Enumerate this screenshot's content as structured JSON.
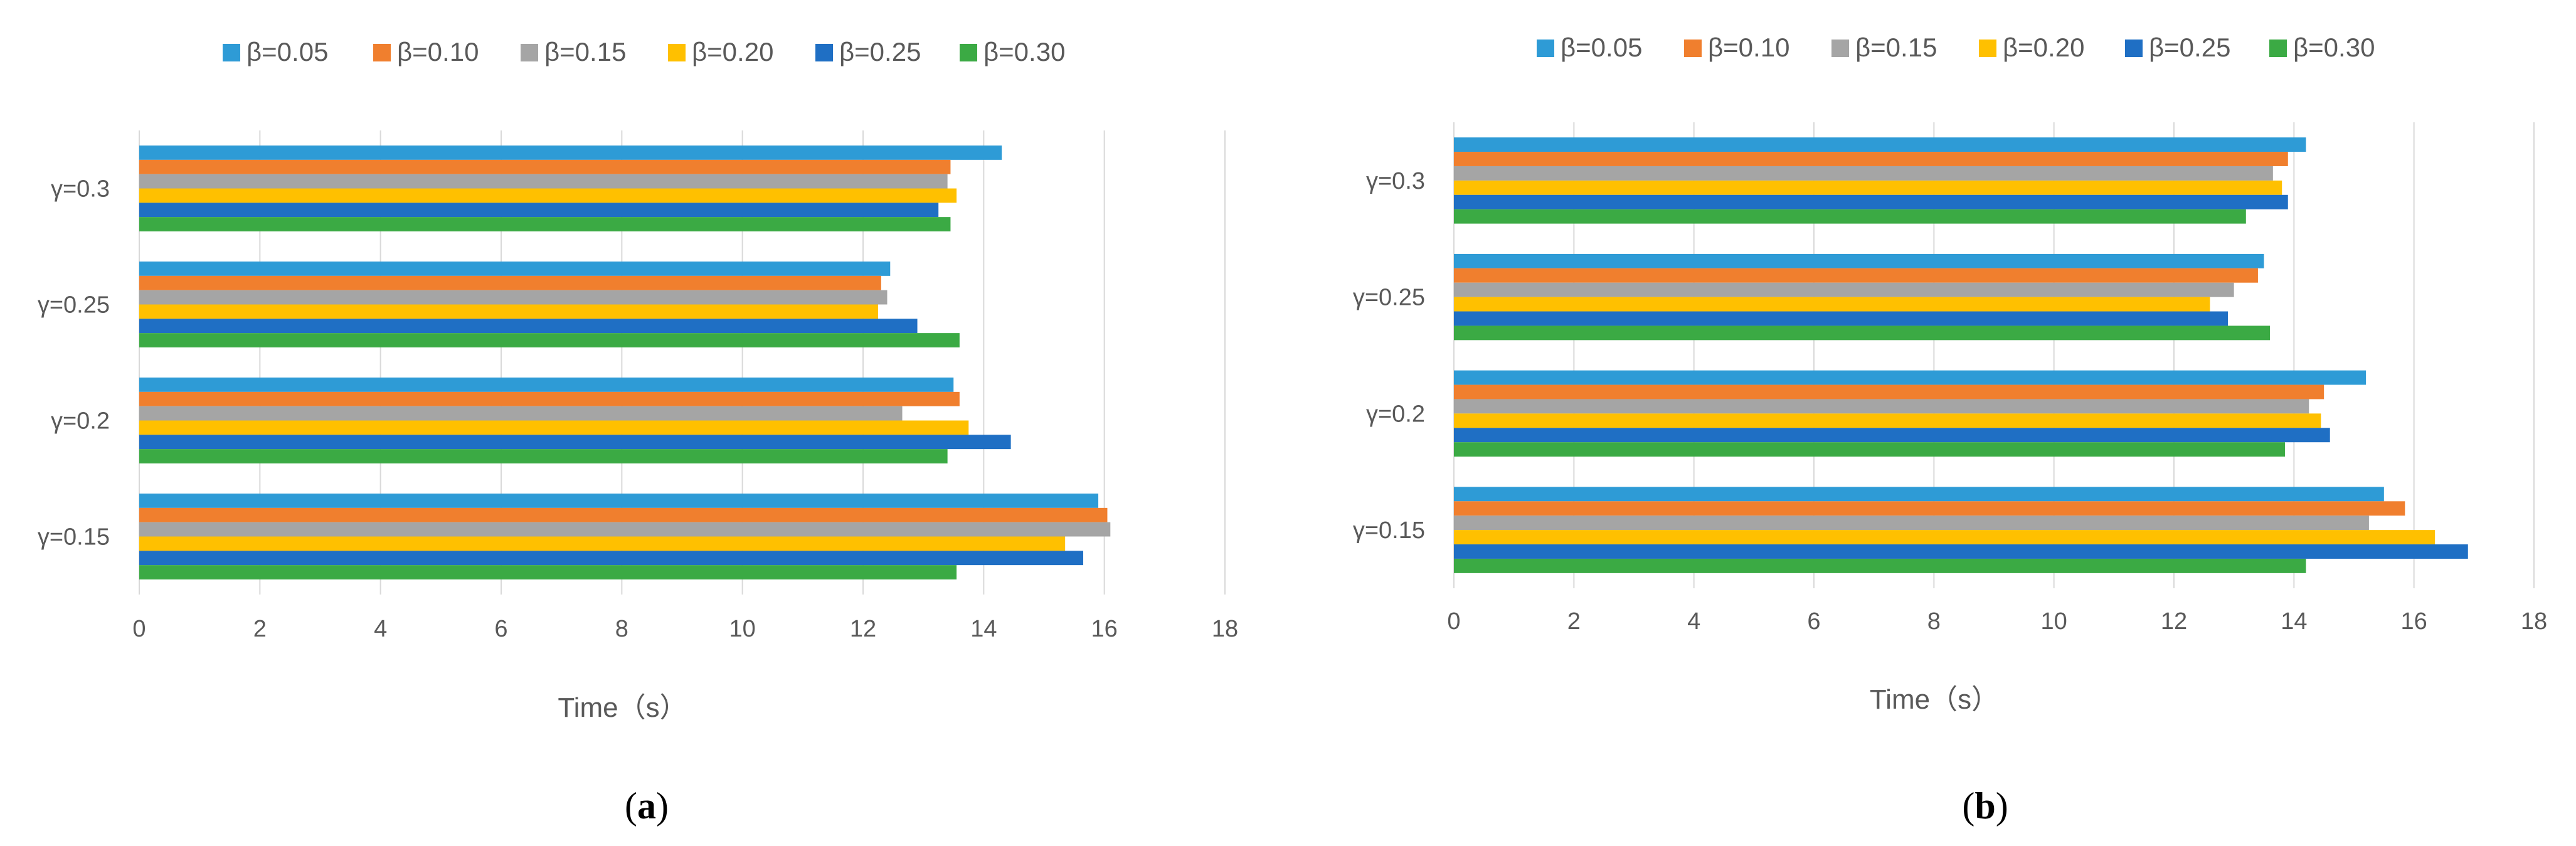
{
  "chart_data": [
    {
      "type": "bar",
      "orientation": "horizontal",
      "panel_label": "a",
      "title": "",
      "xlabel": "Time（s）",
      "ylabel": "",
      "xlim": [
        0,
        18
      ],
      "xticks": [
        0,
        2,
        4,
        6,
        8,
        10,
        12,
        14,
        16,
        18
      ],
      "grid": true,
      "legend_position": "top",
      "categories": [
        "γ=0.15",
        "γ=0.2",
        "γ=0.25",
        "γ=0.3"
      ],
      "series": [
        {
          "name": "β=0.05",
          "color": "#2E9BD6",
          "values": [
            15.9,
            13.5,
            12.45,
            14.3
          ]
        },
        {
          "name": "β=0.10",
          "color": "#F07F2E",
          "values": [
            16.05,
            13.6,
            12.3,
            13.45
          ]
        },
        {
          "name": "β=0.15",
          "color": "#A5A5A5",
          "values": [
            16.1,
            12.65,
            12.4,
            13.4
          ]
        },
        {
          "name": "β=0.20",
          "color": "#FFC000",
          "values": [
            15.35,
            13.75,
            12.25,
            13.55
          ]
        },
        {
          "name": "β=0.25",
          "color": "#1F6FC4",
          "values": [
            15.65,
            14.45,
            12.9,
            13.25
          ]
        },
        {
          "name": "β=0.30",
          "color": "#3BAA44",
          "values": [
            13.55,
            13.4,
            13.6,
            13.45
          ]
        }
      ]
    },
    {
      "type": "bar",
      "orientation": "horizontal",
      "panel_label": "b",
      "title": "",
      "xlabel": "Time（s）",
      "ylabel": "",
      "xlim": [
        0,
        18
      ],
      "xticks": [
        0,
        2,
        4,
        6,
        8,
        10,
        12,
        14,
        16,
        18
      ],
      "grid": true,
      "legend_position": "top",
      "categories": [
        "γ=0.15",
        "γ=0.2",
        "γ=0.25",
        "γ=0.3"
      ],
      "series": [
        {
          "name": "β=0.05",
          "color": "#2E9BD6",
          "values": [
            15.5,
            15.2,
            13.5,
            14.2
          ]
        },
        {
          "name": "β=0.10",
          "color": "#F07F2E",
          "values": [
            15.85,
            14.5,
            13.4,
            13.9
          ]
        },
        {
          "name": "β=0.15",
          "color": "#A5A5A5",
          "values": [
            15.25,
            14.25,
            13.0,
            13.65
          ]
        },
        {
          "name": "β=0.20",
          "color": "#FFC000",
          "values": [
            16.35,
            14.45,
            12.6,
            13.8
          ]
        },
        {
          "name": "β=0.25",
          "color": "#1F6FC4",
          "values": [
            16.9,
            14.6,
            12.9,
            13.9
          ]
        },
        {
          "name": "β=0.30",
          "color": "#3BAA44",
          "values": [
            14.2,
            13.85,
            13.6,
            13.2
          ]
        }
      ]
    }
  ]
}
